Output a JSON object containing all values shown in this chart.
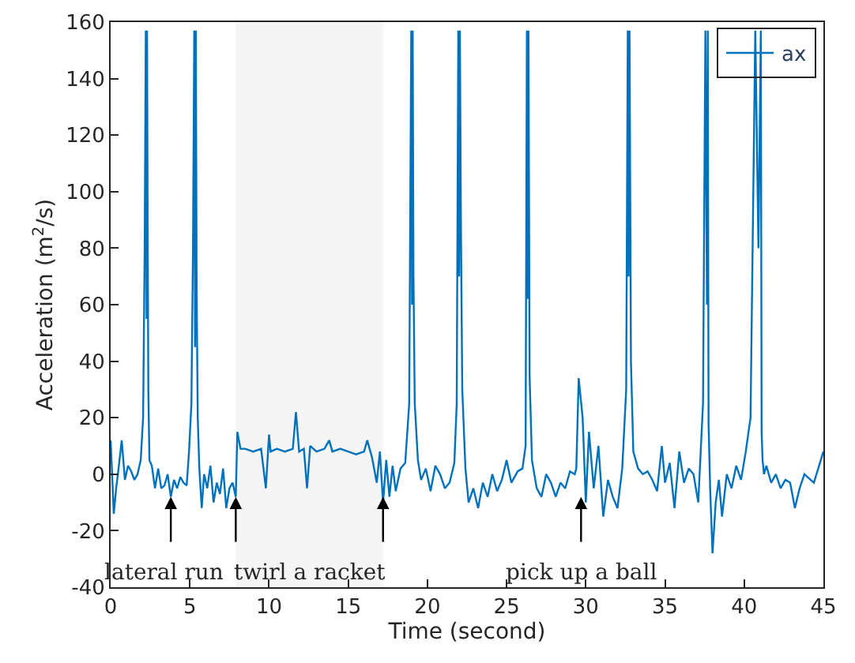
{
  "chart_data": {
    "type": "line",
    "xlabel": "Time (second)",
    "ylabel": "Acceleration (m$^{2}$/s)",
    "xlim": [
      0,
      45
    ],
    "ylim": [
      -40,
      160
    ],
    "xticks": [
      0,
      5,
      10,
      15,
      20,
      25,
      30,
      35,
      40,
      45
    ],
    "yticks": [
      -40,
      -20,
      0,
      20,
      40,
      60,
      80,
      100,
      120,
      140,
      160
    ],
    "legend": "top right",
    "line_style": "solid",
    "marker": "none",
    "series": [
      {
        "name": "ax",
        "color": "#0072bd",
        "x": [
          0,
          0.2,
          0.35,
          0.5,
          0.7,
          0.9,
          1.1,
          1.3,
          1.5,
          1.7,
          1.9,
          2.05,
          2.15,
          2.22,
          2.27,
          2.3,
          2.34,
          2.38,
          2.45,
          2.6,
          2.8,
          3.0,
          3.2,
          3.4,
          3.6,
          3.8,
          4.0,
          4.2,
          4.4,
          4.6,
          4.8,
          4.95,
          5.1,
          5.2,
          5.28,
          5.33,
          5.38,
          5.43,
          5.5,
          5.6,
          5.75,
          5.9,
          6.1,
          6.3,
          6.5,
          6.7,
          6.9,
          7.1,
          7.3,
          7.5,
          7.7,
          7.9,
          8.0,
          8.2,
          8.5,
          9.0,
          9.5,
          9.8,
          10.0,
          10.1,
          10.5,
          11.0,
          11.5,
          11.7,
          11.9,
          12.2,
          12.4,
          12.6,
          13.0,
          13.5,
          13.8,
          14.0,
          14.5,
          15.0,
          15.5,
          16.0,
          16.2,
          16.5,
          16.8,
          17.0,
          17.2,
          17.4,
          17.6,
          17.8,
          18.0,
          18.3,
          18.6,
          18.85,
          18.98,
          19.03,
          19.07,
          19.12,
          19.2,
          19.4,
          19.6,
          19.9,
          20.2,
          20.5,
          20.8,
          21.1,
          21.4,
          21.7,
          21.85,
          21.95,
          22.0,
          22.05,
          22.12,
          22.2,
          22.4,
          22.6,
          22.9,
          23.2,
          23.5,
          23.8,
          24.1,
          24.4,
          24.7,
          25.0,
          25.3,
          25.7,
          26.0,
          26.2,
          26.28,
          26.32,
          26.38,
          26.45,
          26.6,
          26.9,
          27.2,
          27.5,
          27.8,
          28.1,
          28.4,
          28.7,
          29.0,
          29.3,
          29.4,
          29.55,
          29.8,
          30.0,
          30.2,
          30.5,
          30.8,
          31.1,
          31.4,
          31.7,
          32.0,
          32.3,
          32.55,
          32.65,
          32.7,
          32.76,
          32.85,
          33.0,
          33.3,
          33.6,
          33.9,
          34.2,
          34.5,
          34.8,
          35.0,
          35.3,
          35.6,
          35.9,
          36.2,
          36.5,
          36.8,
          37.1,
          37.4,
          37.55,
          37.65,
          37.7,
          37.75,
          37.85,
          38.0,
          38.2,
          38.4,
          38.6,
          38.9,
          39.2,
          39.5,
          39.8,
          40.1,
          40.4,
          40.7,
          40.9,
          41.05,
          41.1,
          41.16,
          41.25,
          41.4,
          41.7,
          42.0,
          42.3,
          42.6,
          42.9,
          43.2,
          43.5,
          43.8,
          44.4,
          45.0
        ],
        "values": [
          12,
          -14,
          -5,
          2,
          12,
          -2,
          3,
          1,
          -2,
          0,
          5,
          20,
          80,
          157,
          55,
          157,
          85,
          30,
          5,
          3,
          -5,
          2,
          -5,
          -4,
          0,
          -8,
          -2,
          -5,
          -1,
          -3,
          -4,
          8,
          25,
          80,
          157,
          45,
          157,
          65,
          20,
          2,
          -12,
          0,
          -5,
          3,
          -10,
          -3,
          -7,
          2,
          -12,
          -5,
          -3,
          -8,
          15,
          9,
          9,
          8,
          9,
          -5,
          14,
          8,
          9,
          8,
          9,
          22,
          8,
          9,
          -5,
          10,
          8,
          9,
          12,
          8,
          9,
          8,
          7,
          8,
          12,
          6,
          -3,
          8,
          -10,
          5,
          -8,
          3,
          -6,
          2,
          4,
          25,
          157,
          60,
          157,
          70,
          25,
          5,
          -2,
          2,
          -6,
          3,
          0,
          -5,
          -3,
          4,
          25,
          157,
          70,
          157,
          85,
          30,
          2,
          -10,
          -5,
          -12,
          -3,
          -8,
          0,
          -6,
          -2,
          5,
          -3,
          1,
          2,
          10,
          157,
          62,
          157,
          35,
          5,
          -5,
          -8,
          0,
          -3,
          -8,
          -3,
          -5,
          1,
          0,
          2,
          34,
          20,
          -10,
          15,
          -5,
          10,
          -15,
          -2,
          -8,
          -12,
          2,
          30,
          157,
          70,
          157,
          40,
          8,
          2,
          0,
          1,
          -2,
          -6,
          10,
          -3,
          4,
          -12,
          8,
          -3,
          2,
          0,
          -10,
          25,
          157,
          60,
          157,
          18,
          -5,
          -28,
          -10,
          -2,
          -15,
          0,
          -5,
          3,
          -2,
          8,
          20,
          157,
          80,
          157,
          15,
          5,
          0,
          3,
          -3,
          0,
          -5,
          -2,
          -3,
          -12,
          -5,
          0,
          -3,
          8
        ]
      }
    ],
    "bands": [
      {
        "axis": "x",
        "from": 7.9,
        "to": 17.2,
        "label": "twirl a racket",
        "color": "#f5f5f5"
      }
    ],
    "annotations": [
      {
        "text": "lateral run",
        "x": 3.8,
        "y": -8
      },
      {
        "text": "pick up a ball",
        "x": 29.7,
        "y": -8
      }
    ]
  }
}
